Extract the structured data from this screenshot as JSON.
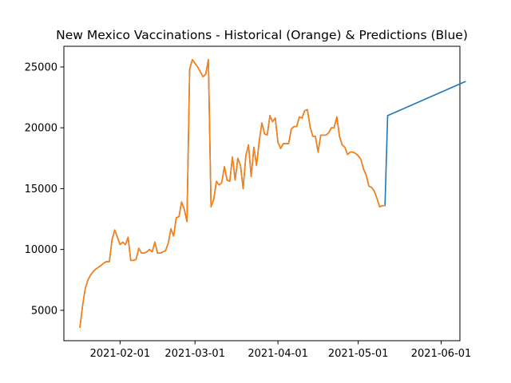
{
  "chart_data": {
    "type": "line",
    "title": "New Mexico Vaccinations - Historical (Orange) & Predictions (Blue)",
    "xlabel": "",
    "ylabel": "",
    "x_ticks": [
      "2021-02-01",
      "2021-03-01",
      "2021-04-01",
      "2021-05-01",
      "2021-06-01"
    ],
    "y_ticks": [
      5000,
      10000,
      15000,
      20000,
      25000
    ],
    "xlim": [
      "2021-01-11",
      "2021-06-08"
    ],
    "ylim": [
      2500,
      26700
    ],
    "grid": false,
    "colors": {
      "predictions": "#1f77b4",
      "historical": "#ff7f0e"
    },
    "series": [
      {
        "key": "predictions",
        "points": [
          [
            "2021-01-17",
            3600
          ],
          [
            "2021-01-18",
            5400
          ],
          [
            "2021-01-19",
            6800
          ],
          [
            "2021-01-20",
            7500
          ],
          [
            "2021-01-21",
            7900
          ],
          [
            "2021-01-22",
            8200
          ],
          [
            "2021-01-23",
            8400
          ],
          [
            "2021-01-24",
            8550
          ],
          [
            "2021-01-25",
            8700
          ],
          [
            "2021-01-26",
            8900
          ],
          [
            "2021-01-27",
            9000
          ],
          [
            "2021-01-28",
            9000
          ],
          [
            "2021-01-29",
            10800
          ],
          [
            "2021-01-30",
            11600
          ],
          [
            "2021-01-31",
            11000
          ],
          [
            "2021-02-01",
            10400
          ],
          [
            "2021-02-02",
            10600
          ],
          [
            "2021-02-03",
            10400
          ],
          [
            "2021-02-04",
            11000
          ],
          [
            "2021-02-05",
            9100
          ],
          [
            "2021-02-06",
            9100
          ],
          [
            "2021-02-07",
            9200
          ],
          [
            "2021-02-08",
            10100
          ],
          [
            "2021-02-09",
            9700
          ],
          [
            "2021-02-10",
            9700
          ],
          [
            "2021-02-11",
            9800
          ],
          [
            "2021-02-12",
            10000
          ],
          [
            "2021-02-13",
            9800
          ],
          [
            "2021-02-14",
            10600
          ],
          [
            "2021-02-15",
            9700
          ],
          [
            "2021-02-16",
            9700
          ],
          [
            "2021-02-17",
            9800
          ],
          [
            "2021-02-18",
            9900
          ],
          [
            "2021-02-19",
            10500
          ],
          [
            "2021-02-20",
            11700
          ],
          [
            "2021-02-21",
            11100
          ],
          [
            "2021-02-22",
            12600
          ],
          [
            "2021-02-23",
            12700
          ],
          [
            "2021-02-24",
            13900
          ],
          [
            "2021-02-25",
            13300
          ],
          [
            "2021-02-26",
            12300
          ],
          [
            "2021-02-27",
            24800
          ],
          [
            "2021-02-28",
            25600
          ],
          [
            "2021-03-01",
            25300
          ],
          [
            "2021-03-02",
            25000
          ],
          [
            "2021-03-03",
            24600
          ],
          [
            "2021-03-04",
            24200
          ],
          [
            "2021-03-05",
            24400
          ],
          [
            "2021-03-06",
            25600
          ],
          [
            "2021-03-07",
            13500
          ],
          [
            "2021-03-08",
            14100
          ],
          [
            "2021-03-09",
            15600
          ],
          [
            "2021-03-10",
            15300
          ],
          [
            "2021-03-11",
            15500
          ],
          [
            "2021-03-12",
            16800
          ],
          [
            "2021-03-13",
            15700
          ],
          [
            "2021-03-14",
            15600
          ],
          [
            "2021-03-15",
            17600
          ],
          [
            "2021-03-16",
            15700
          ],
          [
            "2021-03-17",
            17500
          ],
          [
            "2021-03-18",
            16900
          ],
          [
            "2021-03-19",
            15000
          ],
          [
            "2021-03-20",
            17700
          ],
          [
            "2021-03-21",
            18600
          ],
          [
            "2021-03-22",
            16000
          ],
          [
            "2021-03-23",
            18400
          ],
          [
            "2021-03-24",
            16900
          ],
          [
            "2021-03-25",
            18900
          ],
          [
            "2021-03-26",
            20400
          ],
          [
            "2021-03-27",
            19500
          ],
          [
            "2021-03-28",
            19400
          ],
          [
            "2021-03-29",
            21000
          ],
          [
            "2021-03-30",
            20500
          ],
          [
            "2021-03-31",
            20800
          ],
          [
            "2021-04-01",
            18800
          ],
          [
            "2021-04-02",
            18300
          ],
          [
            "2021-04-03",
            18700
          ],
          [
            "2021-04-04",
            18700
          ],
          [
            "2021-04-05",
            18700
          ],
          [
            "2021-04-06",
            19900
          ],
          [
            "2021-04-07",
            20100
          ],
          [
            "2021-04-08",
            20100
          ],
          [
            "2021-04-09",
            20900
          ],
          [
            "2021-04-10",
            20800
          ],
          [
            "2021-04-11",
            21400
          ],
          [
            "2021-04-12",
            21500
          ],
          [
            "2021-04-13",
            20100
          ],
          [
            "2021-04-14",
            19300
          ],
          [
            "2021-04-15",
            19300
          ],
          [
            "2021-04-16",
            18000
          ],
          [
            "2021-04-17",
            19400
          ],
          [
            "2021-04-18",
            19400
          ],
          [
            "2021-04-19",
            19400
          ],
          [
            "2021-04-20",
            19600
          ],
          [
            "2021-04-21",
            20000
          ],
          [
            "2021-04-22",
            20000
          ],
          [
            "2021-04-23",
            20900
          ],
          [
            "2021-04-24",
            19300
          ],
          [
            "2021-04-25",
            18600
          ],
          [
            "2021-04-26",
            18400
          ],
          [
            "2021-04-27",
            17800
          ],
          [
            "2021-04-28",
            18000
          ],
          [
            "2021-04-29",
            18000
          ],
          [
            "2021-04-30",
            17900
          ],
          [
            "2021-05-01",
            17700
          ],
          [
            "2021-05-02",
            17400
          ],
          [
            "2021-05-03",
            16600
          ],
          [
            "2021-05-04",
            16100
          ],
          [
            "2021-05-05",
            15200
          ],
          [
            "2021-05-06",
            15100
          ],
          [
            "2021-05-07",
            14800
          ],
          [
            "2021-05-08",
            14200
          ],
          [
            "2021-05-09",
            13500
          ],
          [
            "2021-05-10",
            13600
          ],
          [
            "2021-05-11",
            13600
          ],
          [
            "2021-05-12",
            21000
          ],
          [
            "2021-06-10",
            23800
          ]
        ]
      },
      {
        "key": "historical",
        "points": [
          [
            "2021-01-17",
            3600
          ],
          [
            "2021-01-18",
            5400
          ],
          [
            "2021-01-19",
            6800
          ],
          [
            "2021-01-20",
            7500
          ],
          [
            "2021-01-21",
            7900
          ],
          [
            "2021-01-22",
            8200
          ],
          [
            "2021-01-23",
            8400
          ],
          [
            "2021-01-24",
            8550
          ],
          [
            "2021-01-25",
            8700
          ],
          [
            "2021-01-26",
            8900
          ],
          [
            "2021-01-27",
            9000
          ],
          [
            "2021-01-28",
            9000
          ],
          [
            "2021-01-29",
            10800
          ],
          [
            "2021-01-30",
            11600
          ],
          [
            "2021-01-31",
            11000
          ],
          [
            "2021-02-01",
            10400
          ],
          [
            "2021-02-02",
            10600
          ],
          [
            "2021-02-03",
            10400
          ],
          [
            "2021-02-04",
            11000
          ],
          [
            "2021-02-05",
            9100
          ],
          [
            "2021-02-06",
            9100
          ],
          [
            "2021-02-07",
            9200
          ],
          [
            "2021-02-08",
            10100
          ],
          [
            "2021-02-09",
            9700
          ],
          [
            "2021-02-10",
            9700
          ],
          [
            "2021-02-11",
            9800
          ],
          [
            "2021-02-12",
            10000
          ],
          [
            "2021-02-13",
            9800
          ],
          [
            "2021-02-14",
            10600
          ],
          [
            "2021-02-15",
            9700
          ],
          [
            "2021-02-16",
            9700
          ],
          [
            "2021-02-17",
            9800
          ],
          [
            "2021-02-18",
            9900
          ],
          [
            "2021-02-19",
            10500
          ],
          [
            "2021-02-20",
            11700
          ],
          [
            "2021-02-21",
            11100
          ],
          [
            "2021-02-22",
            12600
          ],
          [
            "2021-02-23",
            12700
          ],
          [
            "2021-02-24",
            13900
          ],
          [
            "2021-02-25",
            13300
          ],
          [
            "2021-02-26",
            12300
          ],
          [
            "2021-02-27",
            24800
          ],
          [
            "2021-02-28",
            25600
          ],
          [
            "2021-03-01",
            25300
          ],
          [
            "2021-03-02",
            25000
          ],
          [
            "2021-03-03",
            24600
          ],
          [
            "2021-03-04",
            24200
          ],
          [
            "2021-03-05",
            24400
          ],
          [
            "2021-03-06",
            25600
          ],
          [
            "2021-03-07",
            13500
          ],
          [
            "2021-03-08",
            14100
          ],
          [
            "2021-03-09",
            15600
          ],
          [
            "2021-03-10",
            15300
          ],
          [
            "2021-03-11",
            15500
          ],
          [
            "2021-03-12",
            16800
          ],
          [
            "2021-03-13",
            15700
          ],
          [
            "2021-03-14",
            15600
          ],
          [
            "2021-03-15",
            17600
          ],
          [
            "2021-03-16",
            15700
          ],
          [
            "2021-03-17",
            17500
          ],
          [
            "2021-03-18",
            16900
          ],
          [
            "2021-03-19",
            15000
          ],
          [
            "2021-03-20",
            17700
          ],
          [
            "2021-03-21",
            18600
          ],
          [
            "2021-03-22",
            16000
          ],
          [
            "2021-03-23",
            18400
          ],
          [
            "2021-03-24",
            16900
          ],
          [
            "2021-03-25",
            18900
          ],
          [
            "2021-03-26",
            20400
          ],
          [
            "2021-03-27",
            19500
          ],
          [
            "2021-03-28",
            19400
          ],
          [
            "2021-03-29",
            21000
          ],
          [
            "2021-03-30",
            20500
          ],
          [
            "2021-03-31",
            20800
          ],
          [
            "2021-04-01",
            18800
          ],
          [
            "2021-04-02",
            18300
          ],
          [
            "2021-04-03",
            18700
          ],
          [
            "2021-04-04",
            18700
          ],
          [
            "2021-04-05",
            18700
          ],
          [
            "2021-04-06",
            19900
          ],
          [
            "2021-04-07",
            20100
          ],
          [
            "2021-04-08",
            20100
          ],
          [
            "2021-04-09",
            20900
          ],
          [
            "2021-04-10",
            20800
          ],
          [
            "2021-04-11",
            21400
          ],
          [
            "2021-04-12",
            21500
          ],
          [
            "2021-04-13",
            20100
          ],
          [
            "2021-04-14",
            19300
          ],
          [
            "2021-04-15",
            19300
          ],
          [
            "2021-04-16",
            18000
          ],
          [
            "2021-04-17",
            19400
          ],
          [
            "2021-04-18",
            19400
          ],
          [
            "2021-04-19",
            19400
          ],
          [
            "2021-04-20",
            19600
          ],
          [
            "2021-04-21",
            20000
          ],
          [
            "2021-04-22",
            20000
          ],
          [
            "2021-04-23",
            20900
          ],
          [
            "2021-04-24",
            19300
          ],
          [
            "2021-04-25",
            18600
          ],
          [
            "2021-04-26",
            18400
          ],
          [
            "2021-04-27",
            17800
          ],
          [
            "2021-04-28",
            18000
          ],
          [
            "2021-04-29",
            18000
          ],
          [
            "2021-04-30",
            17900
          ],
          [
            "2021-05-01",
            17700
          ],
          [
            "2021-05-02",
            17400
          ],
          [
            "2021-05-03",
            16600
          ],
          [
            "2021-05-04",
            16100
          ],
          [
            "2021-05-05",
            15200
          ],
          [
            "2021-05-06",
            15100
          ],
          [
            "2021-05-07",
            14800
          ],
          [
            "2021-05-08",
            14200
          ],
          [
            "2021-05-09",
            13500
          ],
          [
            "2021-05-10",
            13600
          ],
          [
            "2021-05-11",
            13600
          ]
        ]
      }
    ]
  }
}
